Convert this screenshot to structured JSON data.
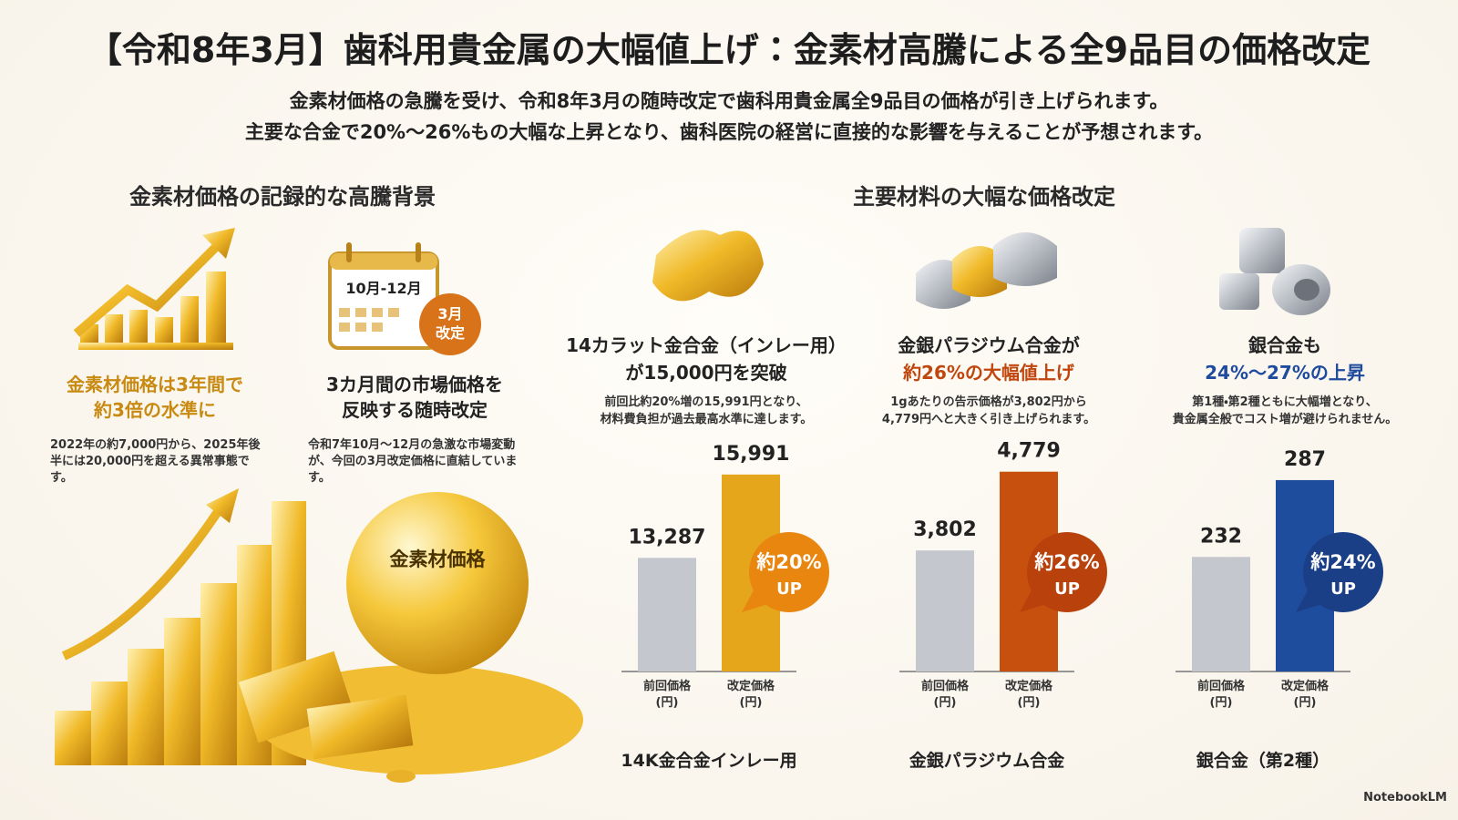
{
  "header": {
    "title": "【令和8年3月】歯科用貴金属の大幅値上げ：金素材高騰による全9品目の価格改定",
    "subtitle_lines": [
      "金素材価格の急騰を受け、令和8年3月の随時改定で歯科用貴金属全9品目の価格が引き上げられます。",
      "主要な合金で20%〜26%もの大幅な上昇となり、歯科医院の経営に直接的な影響を与えることが予想されます。"
    ]
  },
  "left": {
    "heading": "金素材価格の記録的な高騰背景",
    "cards": [
      {
        "title_lines": [
          "金素材価格は3年間で",
          "約3倍の水準に"
        ],
        "body": "2022年の約7,000円から、2025年後半には20,000円を超える異常事態です。"
      },
      {
        "title_lines": [
          "3カ月間の市場価格を",
          "反映する随時改定"
        ],
        "body": "令和7年10月〜12月の急激な市場変動が、今回の3月改定価格に直結しています。"
      }
    ],
    "calendar_range": "10月-12月",
    "calendar_badge": [
      "3月",
      "改定"
    ],
    "sphere_label": "金素材価格"
  },
  "right": {
    "heading": "主要材料の大幅な価格改定",
    "materials": [
      {
        "title_lines": [
          "14カラット金合金（インレー用）",
          "が15,000円を突破"
        ],
        "desc_lines": [
          "前回比約20%増の15,991円となり、",
          "材料費負担が過去最高水準に達します。"
        ]
      },
      {
        "title_lines": [
          "金銀パラジウム合金が",
          "約26%の大幅値上げ"
        ],
        "desc_lines": [
          "1gあたりの告示価格が3,802円から",
          "4,779円へと大きく引き上げられます。"
        ]
      },
      {
        "title_lines": [
          "銀合金も",
          "24%〜27%の上昇"
        ],
        "desc_lines": [
          "第1種・第2種ともに大幅増となり、",
          "貴金属全般でコスト増が避けられません。"
        ]
      }
    ]
  },
  "chart_data": [
    {
      "type": "bar",
      "categories": [
        "前回価格\n(円)",
        "改定価格\n(円)"
      ],
      "values": [
        13287,
        15991
      ],
      "value_labels": [
        "13,287",
        "15,991"
      ],
      "colors": [
        "#c4c8ce",
        "#e6a61c"
      ],
      "ylim": [
        9600,
        16400
      ],
      "badge": [
        "約20%",
        "UP"
      ],
      "badge_color": "#e8860f",
      "caption": "14K金合金インレー用"
    },
    {
      "type": "bar",
      "categories": [
        "前回価格\n(円)",
        "改定価格\n(円)"
      ],
      "values": [
        3802,
        4779
      ],
      "value_labels": [
        "3,802",
        "4,779"
      ],
      "colors": [
        "#c4c8ce",
        "#c8500e"
      ],
      "ylim": [
        2300,
        4900
      ],
      "badge": [
        "約26%",
        "UP"
      ],
      "badge_color": "#b8410c",
      "caption": "金銀パラジウム合金"
    },
    {
      "type": "bar",
      "categories": [
        "前回価格\n(円)",
        "改定価格\n(円)"
      ],
      "values": [
        232,
        287
      ],
      "value_labels": [
        "232",
        "287"
      ],
      "colors": [
        "#c4c8ce",
        "#1f4d9e"
      ],
      "ylim": [
        150,
        300
      ],
      "badge": [
        "約24%",
        "UP"
      ],
      "badge_color": "#1b3f86",
      "caption": "銀合金（第2種）"
    }
  ],
  "footer": "NotebookLM"
}
